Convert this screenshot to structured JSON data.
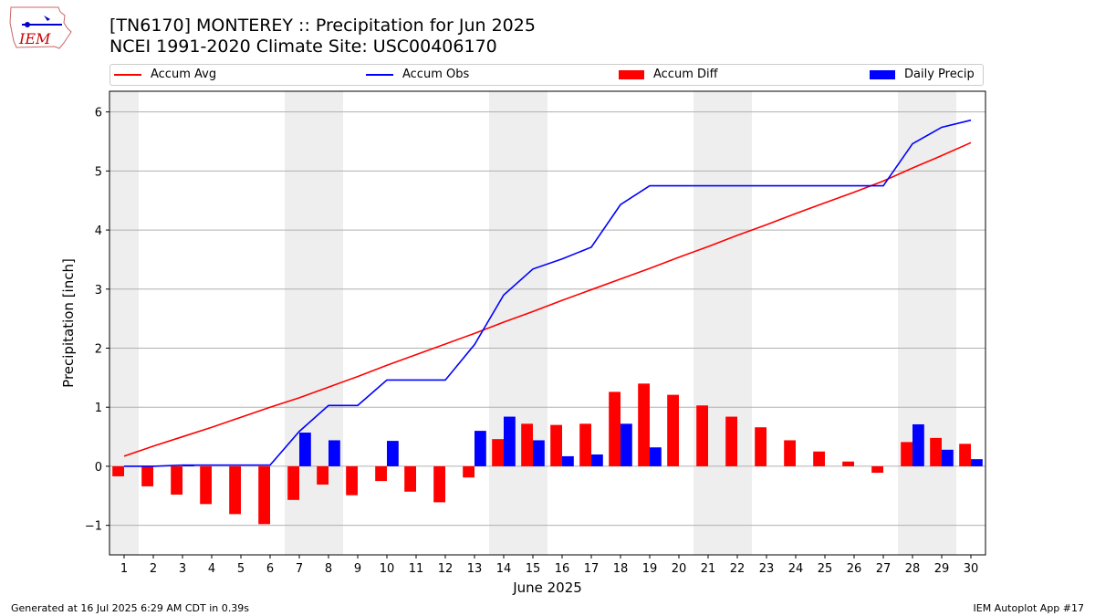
{
  "header": {
    "title_line1": "[TN6170] MONTEREY :: Precipitation for Jun 2025",
    "title_line2": "NCEI 1991-2020 Climate Site: USC00406170",
    "logo_text": "IEM"
  },
  "legend": {
    "items": [
      {
        "label": "Accum Avg",
        "kind": "line",
        "color": "#ff0000"
      },
      {
        "label": "Accum Obs",
        "kind": "line",
        "color": "#0000ff"
      },
      {
        "label": "Accum Diff",
        "kind": "box",
        "color": "#ff0000"
      },
      {
        "label": "Daily Precip",
        "kind": "box",
        "color": "#0000ff"
      }
    ]
  },
  "footer": {
    "left": "Generated at 16 Jul 2025 6:29 AM CDT in 0.39s",
    "right": "IEM Autoplot App #17"
  },
  "chart_data": {
    "type": "bar",
    "xlabel": "June 2025",
    "ylabel": "Precipitation [inch]",
    "categories": [
      "1",
      "2",
      "3",
      "4",
      "5",
      "6",
      "7",
      "8",
      "9",
      "10",
      "11",
      "12",
      "13",
      "14",
      "15",
      "16",
      "17",
      "18",
      "19",
      "20",
      "21",
      "22",
      "23",
      "24",
      "25",
      "26",
      "27",
      "28",
      "29",
      "30"
    ],
    "ylim": [
      -1.5,
      6.35
    ],
    "yticks": [
      -1,
      0,
      1,
      2,
      3,
      4,
      5,
      6
    ],
    "ytick_labels": [
      "−1",
      "0",
      "1",
      "2",
      "3",
      "4",
      "5",
      "6"
    ],
    "grid": true,
    "weekend_shading_days": [
      1,
      7,
      8,
      14,
      15,
      21,
      22,
      28,
      29
    ],
    "shade_color": "#eeeeee",
    "series": [
      {
        "name": "Accum Avg",
        "kind": "line",
        "color": "#ff0000",
        "values": [
          0.17,
          0.34,
          0.5,
          0.66,
          0.83,
          1.0,
          1.16,
          1.34,
          1.52,
          1.71,
          1.89,
          2.07,
          2.25,
          2.44,
          2.62,
          2.81,
          2.99,
          3.17,
          3.35,
          3.54,
          3.72,
          3.91,
          4.09,
          4.28,
          4.46,
          4.64,
          4.83,
          5.05,
          5.26,
          5.48
        ]
      },
      {
        "name": "Accum Obs",
        "kind": "line",
        "color": "#0000ff",
        "values": [
          0.0,
          0.0,
          0.02,
          0.02,
          0.02,
          0.02,
          0.59,
          1.03,
          1.03,
          1.46,
          1.46,
          1.46,
          2.06,
          2.9,
          3.34,
          3.51,
          3.71,
          4.43,
          4.75,
          4.75,
          4.75,
          4.75,
          4.75,
          4.75,
          4.75,
          4.75,
          4.75,
          5.46,
          5.74,
          5.86
        ]
      },
      {
        "name": "Accum Diff",
        "kind": "bar",
        "color": "#ff0000",
        "values": [
          -0.17,
          -0.34,
          -0.48,
          -0.64,
          -0.81,
          -0.98,
          -0.57,
          -0.31,
          -0.49,
          -0.25,
          -0.43,
          -0.61,
          -0.19,
          0.46,
          0.72,
          0.7,
          0.72,
          1.26,
          1.4,
          1.21,
          1.03,
          0.84,
          0.66,
          0.44,
          0.25,
          0.08,
          -0.11,
          0.41,
          0.48,
          0.38
        ]
      },
      {
        "name": "Daily Precip",
        "kind": "bar",
        "color": "#0000ff",
        "values": [
          0.0,
          0.0,
          0.02,
          0.0,
          0.0,
          0.0,
          0.57,
          0.44,
          0.0,
          0.43,
          0.0,
          0.0,
          0.6,
          0.84,
          0.44,
          0.17,
          0.2,
          0.72,
          0.32,
          0.0,
          0.0,
          0.0,
          0.0,
          0.0,
          0.0,
          0.0,
          0.0,
          0.71,
          0.28,
          0.12
        ]
      }
    ]
  }
}
